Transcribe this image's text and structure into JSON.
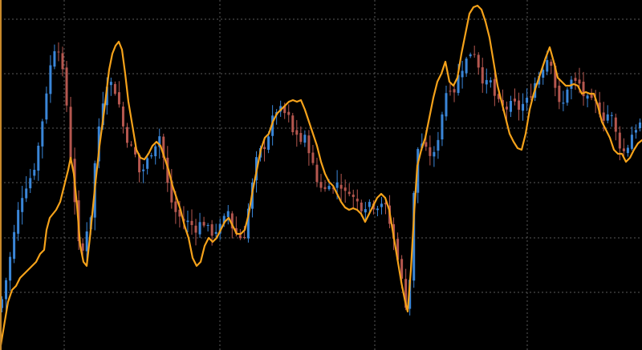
{
  "chart_data": {
    "type": "candlestick",
    "title": "",
    "xlabel": "",
    "ylabel": "",
    "ylim": [
      0,
      437
    ],
    "grid": true,
    "colors": {
      "background": "#000000",
      "bull": "#3a86d8",
      "bear": "#b5574f",
      "overlay": "#f5a21a",
      "grid": "#5a5a5a",
      "left_border": "#c8892b"
    },
    "bar_count": 159,
    "close_path": [
      [
        0,
        52
      ],
      [
        5,
        75
      ],
      [
        10,
        100
      ],
      [
        15,
        130
      ],
      [
        20,
        160
      ],
      [
        25,
        185
      ],
      [
        30,
        200
      ],
      [
        35,
        210
      ],
      [
        40,
        220
      ],
      [
        45,
        235
      ],
      [
        50,
        270
      ],
      [
        55,
        300
      ],
      [
        60,
        340
      ],
      [
        65,
        365
      ],
      [
        70,
        385
      ],
      [
        75,
        370
      ],
      [
        80,
        330
      ],
      [
        85,
        290
      ],
      [
        88,
        240
      ],
      [
        92,
        200
      ],
      [
        97,
        140
      ],
      [
        101,
        110
      ],
      [
        105,
        135
      ],
      [
        110,
        160
      ],
      [
        114,
        170
      ],
      [
        118,
        230
      ],
      [
        122,
        270
      ],
      [
        126,
        300
      ],
      [
        130,
        320
      ],
      [
        135,
        340
      ],
      [
        140,
        330
      ],
      [
        145,
        320
      ],
      [
        150,
        300
      ],
      [
        155,
        270
      ],
      [
        160,
        260
      ],
      [
        165,
        250
      ],
      [
        170,
        240
      ],
      [
        175,
        215
      ],
      [
        180,
        230
      ],
      [
        185,
        240
      ],
      [
        190,
        250
      ],
      [
        195,
        260
      ],
      [
        200,
        270
      ],
      [
        205,
        230
      ],
      [
        210,
        200
      ],
      [
        215,
        180
      ],
      [
        220,
        170
      ],
      [
        225,
        165
      ],
      [
        230,
        160
      ],
      [
        235,
        160
      ],
      [
        240,
        155
      ],
      [
        245,
        150
      ],
      [
        250,
        160
      ],
      [
        255,
        158
      ],
      [
        260,
        150
      ],
      [
        265,
        145
      ],
      [
        270,
        150
      ],
      [
        275,
        155
      ],
      [
        280,
        165
      ],
      [
        285,
        175
      ],
      [
        290,
        150
      ],
      [
        295,
        145
      ],
      [
        300,
        140
      ],
      [
        305,
        145
      ],
      [
        310,
        180
      ],
      [
        315,
        210
      ],
      [
        320,
        240
      ],
      [
        325,
        250
      ],
      [
        330,
        255
      ],
      [
        335,
        270
      ],
      [
        340,
        290
      ],
      [
        345,
        300
      ],
      [
        350,
        300
      ],
      [
        355,
        295
      ],
      [
        360,
        290
      ],
      [
        365,
        270
      ],
      [
        370,
        270
      ],
      [
        375,
        260
      ],
      [
        380,
        265
      ],
      [
        385,
        250
      ],
      [
        390,
        230
      ],
      [
        395,
        210
      ],
      [
        400,
        205
      ],
      [
        405,
        200
      ],
      [
        410,
        210
      ],
      [
        415,
        200
      ],
      [
        420,
        210
      ],
      [
        425,
        205
      ],
      [
        430,
        195
      ],
      [
        435,
        200
      ],
      [
        440,
        190
      ],
      [
        445,
        185
      ],
      [
        450,
        178
      ],
      [
        455,
        180
      ],
      [
        460,
        185
      ],
      [
        465,
        180
      ],
      [
        470,
        180
      ],
      [
        475,
        185
      ],
      [
        480,
        180
      ],
      [
        485,
        160
      ],
      [
        490,
        140
      ],
      [
        495,
        120
      ],
      [
        500,
        90
      ],
      [
        505,
        60
      ],
      [
        508,
        45
      ],
      [
        512,
        110
      ],
      [
        516,
        200
      ],
      [
        520,
        250
      ],
      [
        525,
        260
      ],
      [
        530,
        250
      ],
      [
        535,
        245
      ],
      [
        540,
        240
      ],
      [
        545,
        260
      ],
      [
        550,
        290
      ],
      [
        555,
        320
      ],
      [
        560,
        330
      ],
      [
        565,
        320
      ],
      [
        570,
        340
      ],
      [
        575,
        350
      ],
      [
        580,
        360
      ],
      [
        585,
        370
      ],
      [
        590,
        375
      ],
      [
        595,
        360
      ],
      [
        600,
        340
      ],
      [
        605,
        330
      ],
      [
        610,
        340
      ],
      [
        615,
        320
      ],
      [
        620,
        310
      ],
      [
        625,
        305
      ],
      [
        630,
        300
      ],
      [
        635,
        305
      ],
      [
        640,
        310
      ],
      [
        645,
        300
      ],
      [
        650,
        305
      ],
      [
        655,
        310
      ],
      [
        660,
        315
      ],
      [
        665,
        330
      ],
      [
        670,
        340
      ],
      [
        675,
        350
      ],
      [
        680,
        360
      ],
      [
        685,
        370
      ],
      [
        690,
        340
      ],
      [
        695,
        310
      ],
      [
        700,
        300
      ],
      [
        705,
        320
      ],
      [
        710,
        340
      ],
      [
        715,
        330
      ],
      [
        720,
        340
      ],
      [
        725,
        320
      ],
      [
        730,
        315
      ],
      [
        735,
        310
      ],
      [
        740,
        310
      ],
      [
        745,
        305
      ],
      [
        750,
        290
      ],
      [
        755,
        290
      ],
      [
        760,
        300
      ],
      [
        765,
        280
      ],
      [
        770,
        260
      ],
      [
        775,
        250
      ],
      [
        780,
        245
      ],
      [
        785,
        265
      ],
      [
        790,
        275
      ],
      [
        795,
        280
      ],
      [
        800,
        285
      ]
    ],
    "overlay_path": [
      [
        0,
        0
      ],
      [
        5,
        30
      ],
      [
        10,
        60
      ],
      [
        15,
        75
      ],
      [
        20,
        80
      ],
      [
        25,
        90
      ],
      [
        30,
        95
      ],
      [
        35,
        100
      ],
      [
        40,
        105
      ],
      [
        45,
        110
      ],
      [
        50,
        120
      ],
      [
        55,
        125
      ],
      [
        58,
        150
      ],
      [
        62,
        165
      ],
      [
        66,
        170
      ],
      [
        70,
        175
      ],
      [
        75,
        185
      ],
      [
        80,
        205
      ],
      [
        85,
        225
      ],
      [
        88,
        240
      ],
      [
        92,
        220
      ],
      [
        96,
        180
      ],
      [
        100,
        130
      ],
      [
        104,
        110
      ],
      [
        108,
        105
      ],
      [
        112,
        140
      ],
      [
        118,
        200
      ],
      [
        124,
        255
      ],
      [
        130,
        300
      ],
      [
        136,
        350
      ],
      [
        140,
        370
      ],
      [
        144,
        380
      ],
      [
        148,
        385
      ],
      [
        152,
        375
      ],
      [
        156,
        345
      ],
      [
        160,
        310
      ],
      [
        165,
        280
      ],
      [
        170,
        250
      ],
      [
        175,
        240
      ],
      [
        180,
        238
      ],
      [
        185,
        245
      ],
      [
        190,
        255
      ],
      [
        195,
        260
      ],
      [
        200,
        255
      ],
      [
        205,
        240
      ],
      [
        210,
        225
      ],
      [
        215,
        205
      ],
      [
        220,
        190
      ],
      [
        225,
        175
      ],
      [
        230,
        155
      ],
      [
        235,
        140
      ],
      [
        240,
        115
      ],
      [
        245,
        105
      ],
      [
        250,
        110
      ],
      [
        255,
        130
      ],
      [
        260,
        140
      ],
      [
        265,
        135
      ],
      [
        270,
        140
      ],
      [
        275,
        150
      ],
      [
        280,
        160
      ],
      [
        285,
        165
      ],
      [
        290,
        155
      ],
      [
        295,
        145
      ],
      [
        300,
        145
      ],
      [
        305,
        150
      ],
      [
        310,
        170
      ],
      [
        315,
        200
      ],
      [
        320,
        225
      ],
      [
        325,
        250
      ],
      [
        330,
        265
      ],
      [
        335,
        270
      ],
      [
        340,
        285
      ],
      [
        345,
        295
      ],
      [
        350,
        300
      ],
      [
        355,
        305
      ],
      [
        360,
        310
      ],
      [
        365,
        312
      ],
      [
        370,
        310
      ],
      [
        375,
        312
      ],
      [
        380,
        300
      ],
      [
        385,
        285
      ],
      [
        390,
        270
      ],
      [
        395,
        255
      ],
      [
        400,
        235
      ],
      [
        405,
        220
      ],
      [
        410,
        210
      ],
      [
        415,
        205
      ],
      [
        420,
        195
      ],
      [
        425,
        185
      ],
      [
        430,
        178
      ],
      [
        435,
        175
      ],
      [
        440,
        177
      ],
      [
        445,
        175
      ],
      [
        450,
        170
      ],
      [
        455,
        160
      ],
      [
        460,
        170
      ],
      [
        465,
        180
      ],
      [
        470,
        190
      ],
      [
        475,
        195
      ],
      [
        480,
        190
      ],
      [
        485,
        175
      ],
      [
        490,
        145
      ],
      [
        495,
        115
      ],
      [
        500,
        85
      ],
      [
        505,
        60
      ],
      [
        508,
        48
      ],
      [
        512,
        100
      ],
      [
        516,
        170
      ],
      [
        520,
        230
      ],
      [
        525,
        250
      ],
      [
        530,
        265
      ],
      [
        535,
        290
      ],
      [
        540,
        315
      ],
      [
        545,
        335
      ],
      [
        550,
        345
      ],
      [
        555,
        360
      ],
      [
        560,
        335
      ],
      [
        565,
        330
      ],
      [
        570,
        340
      ],
      [
        575,
        370
      ],
      [
        580,
        395
      ],
      [
        585,
        420
      ],
      [
        590,
        428
      ],
      [
        595,
        430
      ],
      [
        600,
        425
      ],
      [
        605,
        410
      ],
      [
        610,
        390
      ],
      [
        615,
        360
      ],
      [
        620,
        330
      ],
      [
        625,
        310
      ],
      [
        630,
        290
      ],
      [
        635,
        270
      ],
      [
        640,
        260
      ],
      [
        645,
        252
      ],
      [
        650,
        250
      ],
      [
        655,
        270
      ],
      [
        660,
        300
      ],
      [
        665,
        320
      ],
      [
        670,
        335
      ],
      [
        675,
        350
      ],
      [
        680,
        365
      ],
      [
        685,
        378
      ],
      [
        690,
        360
      ],
      [
        695,
        340
      ],
      [
        700,
        335
      ],
      [
        705,
        330
      ],
      [
        710,
        330
      ],
      [
        715,
        332
      ],
      [
        720,
        330
      ],
      [
        725,
        320
      ],
      [
        730,
        322
      ],
      [
        735,
        320
      ],
      [
        740,
        320
      ],
      [
        745,
        305
      ],
      [
        750,
        285
      ],
      [
        755,
        275
      ],
      [
        760,
        265
      ],
      [
        765,
        250
      ],
      [
        770,
        245
      ],
      [
        775,
        245
      ],
      [
        780,
        235
      ],
      [
        785,
        240
      ],
      [
        790,
        250
      ],
      [
        795,
        258
      ],
      [
        800,
        262
      ]
    ]
  }
}
